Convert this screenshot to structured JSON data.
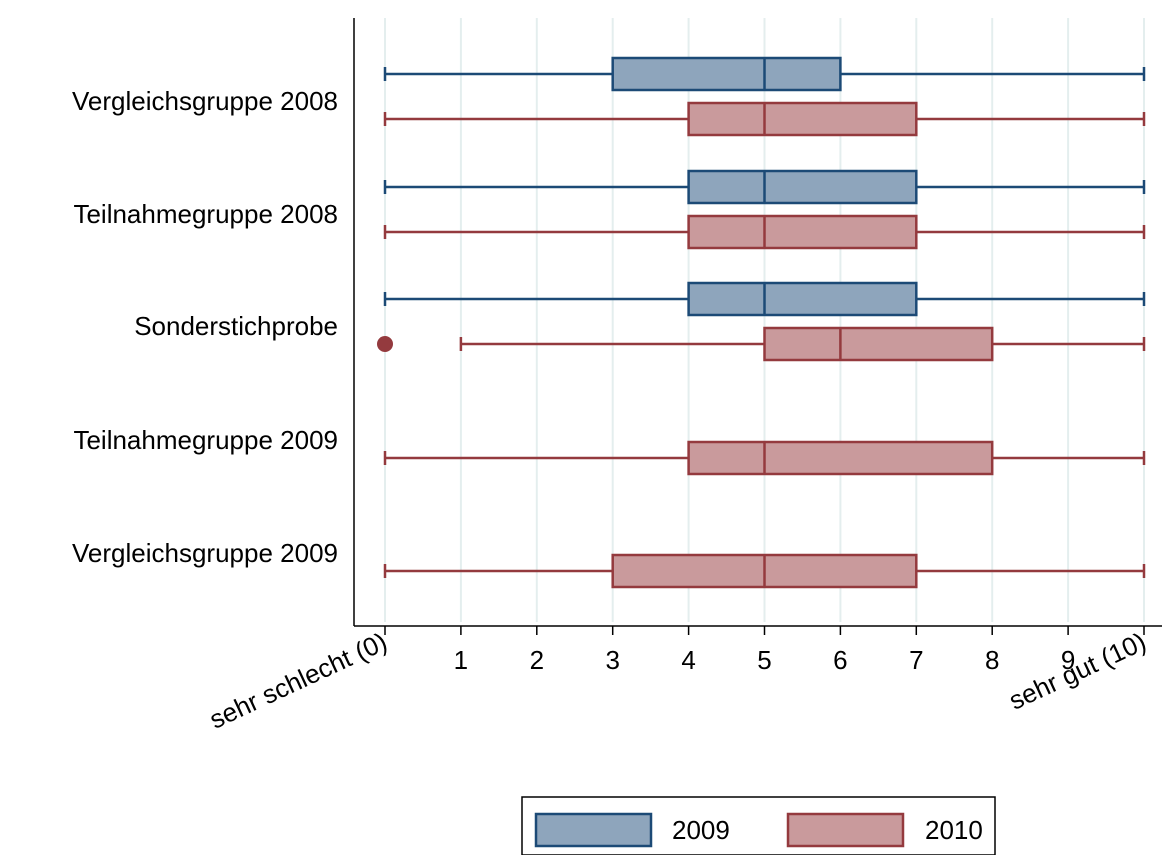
{
  "chart_data": {
    "type": "boxplot",
    "orientation": "horizontal",
    "x_range": [
      0,
      10
    ],
    "x_ticks": [
      {
        "value": 0,
        "label": "sehr schlecht (0)",
        "rotated": true
      },
      {
        "value": 1,
        "label": "1",
        "rotated": false
      },
      {
        "value": 2,
        "label": "2",
        "rotated": false
      },
      {
        "value": 3,
        "label": "3",
        "rotated": false
      },
      {
        "value": 4,
        "label": "4",
        "rotated": false
      },
      {
        "value": 5,
        "label": "5",
        "rotated": false
      },
      {
        "value": 6,
        "label": "6",
        "rotated": false
      },
      {
        "value": 7,
        "label": "7",
        "rotated": false
      },
      {
        "value": 8,
        "label": "8",
        "rotated": false
      },
      {
        "value": 9,
        "label": "9",
        "rotated": false
      },
      {
        "value": 10,
        "label": "sehr gut (10)",
        "rotated": true
      }
    ],
    "grid": "vertical",
    "legend_position": "bottom",
    "colors": {
      "2009": {
        "fill": "#8ea5bc",
        "stroke": "#1c4a76"
      },
      "2010": {
        "fill": "#c99a9c",
        "stroke": "#943a3e"
      }
    },
    "series": [
      {
        "name": "2009"
      },
      {
        "name": "2010"
      }
    ],
    "groups": [
      {
        "label": "Vergleichsgruppe 2008",
        "boxes": [
          {
            "series": "2009",
            "min": 0,
            "q1": 3,
            "median": 5,
            "q3": 6,
            "max": 10,
            "outliers": []
          },
          {
            "series": "2010",
            "min": 0,
            "q1": 4,
            "median": 5,
            "q3": 7,
            "max": 10,
            "outliers": []
          }
        ]
      },
      {
        "label": "Teilnahmegruppe 2008",
        "boxes": [
          {
            "series": "2009",
            "min": 0,
            "q1": 4,
            "median": 5,
            "q3": 7,
            "max": 10,
            "outliers": []
          },
          {
            "series": "2010",
            "min": 0,
            "q1": 4,
            "median": 5,
            "q3": 7,
            "max": 10,
            "outliers": []
          }
        ]
      },
      {
        "label": "Sonderstichprobe",
        "boxes": [
          {
            "series": "2009",
            "min": 0,
            "q1": 4,
            "median": 5,
            "q3": 7,
            "max": 10,
            "outliers": []
          },
          {
            "series": "2010",
            "min": 1,
            "q1": 5,
            "median": 6,
            "q3": 8,
            "max": 10,
            "outliers": [
              0
            ]
          }
        ]
      },
      {
        "label": "Teilnahmegruppe 2009",
        "boxes": [
          {
            "series": "2010",
            "min": 0,
            "q1": 4,
            "median": 5,
            "q3": 8,
            "max": 10,
            "outliers": []
          }
        ]
      },
      {
        "label": "Vergleichsgruppe 2009",
        "boxes": [
          {
            "series": "2010",
            "min": 0,
            "q1": 3,
            "median": 5,
            "q3": 7,
            "max": 10,
            "outliers": []
          }
        ]
      }
    ]
  }
}
